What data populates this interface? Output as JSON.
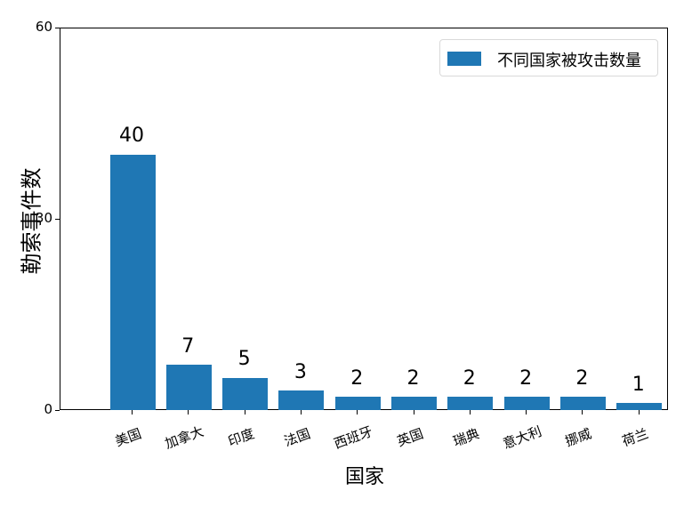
{
  "chart_data": {
    "type": "bar",
    "title": "",
    "xlabel": "国家",
    "ylabel": "勒索事件数",
    "categories": [
      "美国",
      "加拿大",
      "印度",
      "法国",
      "西班牙",
      "英国",
      "瑞典",
      "意大利",
      "挪威",
      "荷兰"
    ],
    "values": [
      40,
      7,
      5,
      3,
      2,
      2,
      2,
      2,
      2,
      1
    ],
    "series": [
      {
        "name": "不同国家被攻击数量",
        "values": [
          40,
          7,
          5,
          3,
          2,
          2,
          2,
          2,
          2,
          1
        ],
        "color": "#1f77b4"
      }
    ],
    "ylim": [
      0,
      60
    ],
    "yticks": [
      0,
      30,
      60
    ],
    "grid": false,
    "legend_position": "upper right",
    "data_labels": true,
    "xtick_rotation": -20
  },
  "labels": {
    "xlabel": "国家",
    "ylabel": "勒索事件数",
    "legend": "不同国家被攻击数量",
    "yticks": [
      "0",
      "30",
      "60"
    ],
    "categories": [
      "美国",
      "加拿大",
      "印度",
      "法国",
      "西班牙",
      "英国",
      "瑞典",
      "意大利",
      "挪威",
      "荷兰"
    ],
    "values": [
      "40",
      "7",
      "5",
      "3",
      "2",
      "2",
      "2",
      "2",
      "2",
      "1"
    ]
  }
}
